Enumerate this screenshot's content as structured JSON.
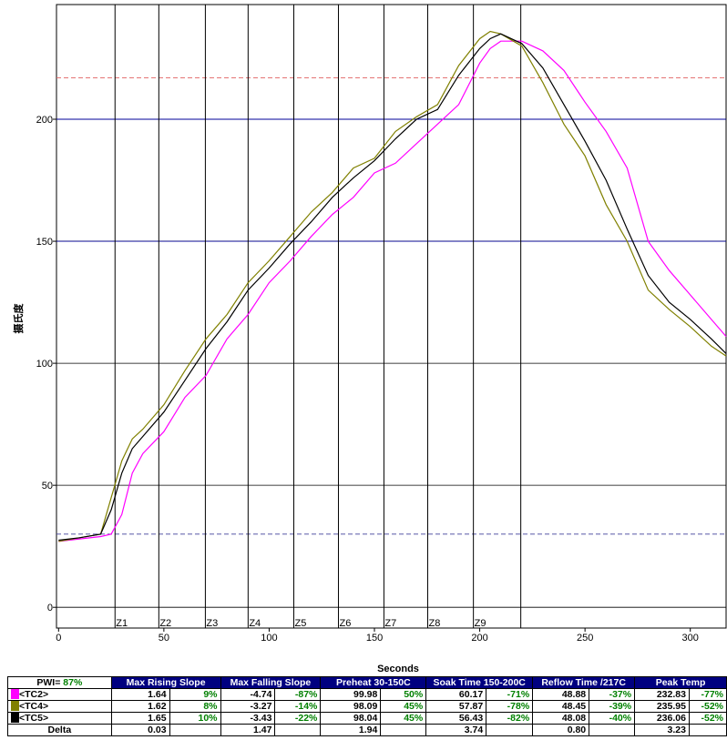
{
  "chart_data": {
    "type": "line",
    "x_label": "Seconds",
    "y_label": "摄氏度",
    "x": [
      0,
      10,
      20,
      25,
      30,
      35,
      40,
      50,
      60,
      70,
      80,
      90,
      100,
      110,
      120,
      130,
      140,
      150,
      160,
      170,
      180,
      190,
      200,
      205,
      210,
      220,
      230,
      240,
      250,
      260,
      270,
      280,
      290,
      300,
      310,
      317
    ],
    "series": [
      {
        "name": "<TC2>",
        "color": "#ff00ff",
        "values": [
          27,
          28,
          29,
          30,
          38,
          55,
          63,
          72,
          86,
          95,
          110,
          120,
          133,
          142,
          152,
          161,
          168,
          178,
          182,
          190,
          198,
          206,
          223,
          229,
          232,
          232,
          228,
          220,
          207,
          195,
          180,
          150,
          138,
          128,
          118,
          111
        ]
      },
      {
        "name": "<TC4>",
        "color": "#808000",
        "values": [
          27,
          28.5,
          30,
          45,
          60,
          69,
          73,
          83,
          97,
          110,
          120,
          133,
          142,
          152,
          162,
          170,
          180,
          184,
          195,
          201,
          206,
          222,
          233,
          236,
          235,
          230,
          215,
          198,
          185,
          165,
          150,
          130,
          122,
          115,
          107,
          103
        ]
      },
      {
        "name": "<TC5>",
        "color": "#000000",
        "values": [
          27.5,
          28.5,
          30,
          40,
          55,
          65,
          70,
          80,
          93,
          106,
          117,
          130,
          139,
          149,
          158,
          168,
          176,
          183,
          192,
          200,
          204,
          218,
          229,
          233,
          235,
          231,
          221,
          206,
          191,
          175,
          155,
          136,
          125,
          118,
          110,
          104
        ]
      }
    ],
    "xlim": [
      -1,
      317
    ],
    "xticks": [
      0,
      50,
      100,
      150,
      200,
      250,
      300
    ],
    "ylim": [
      -8.5,
      247
    ],
    "yticks": [
      0,
      50,
      100,
      150,
      200
    ],
    "grid": true,
    "hlines": [
      {
        "y": 200,
        "color": "#000099",
        "dashed": false
      },
      {
        "y": 150,
        "color": "#000099",
        "dashed": false
      },
      {
        "y": 217,
        "color": "#e06060",
        "dashed": true
      },
      {
        "y": 30,
        "color": "#404099",
        "dashed": true
      }
    ],
    "zone_x": [
      26.8,
      47.6,
      69.7,
      90,
      111.7,
      132.9,
      154.5,
      175.3,
      197,
      219.5
    ],
    "zone_labels": [
      "Z1",
      "Z2",
      "Z3",
      "Z4",
      "Z5",
      "Z6",
      "Z7",
      "Z8",
      "Z9"
    ]
  },
  "table": {
    "pwi_label": "PWI=",
    "pwi_value": "87%",
    "columns": [
      "Max Rising Slope",
      "Max Falling Slope",
      "Preheat  30-150C",
      "Soak Time 150-200C",
      "Reflow Time /217C",
      "Peak Temp"
    ],
    "rows": [
      {
        "name": "<TC2>",
        "color": "#ff00ff",
        "cells": [
          "1.64",
          "9%",
          "-4.74",
          "-87%",
          "99.98",
          "50%",
          "60.17",
          "-71%",
          "48.88",
          "-37%",
          "232.83",
          "-77%"
        ]
      },
      {
        "name": "<TC4>",
        "color": "#808000",
        "cells": [
          "1.62",
          "8%",
          "-3.27",
          "-14%",
          "98.09",
          "45%",
          "57.87",
          "-78%",
          "48.45",
          "-39%",
          "235.95",
          "-52%"
        ]
      },
      {
        "name": "<TC5>",
        "color": "#000000",
        "cells": [
          "1.65",
          "10%",
          "-3.43",
          "-22%",
          "98.04",
          "45%",
          "56.43",
          "-82%",
          "48.08",
          "-40%",
          "236.06",
          "-52%"
        ]
      }
    ],
    "delta": {
      "name": "Delta",
      "cells": [
        "0.03",
        "1.47",
        "1.94",
        "3.74",
        "0.80",
        "3.23"
      ]
    }
  }
}
